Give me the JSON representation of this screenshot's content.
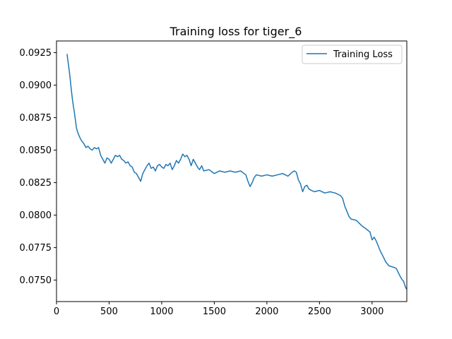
{
  "chart_data": {
    "type": "line",
    "title": "Training loss for tiger_6",
    "xlabel": "",
    "ylabel": "",
    "xlim": [
      0,
      3330
    ],
    "ylim": [
      0.07335,
      0.0934
    ],
    "grid": false,
    "legend_position": "top-right",
    "x_ticks": [
      0,
      500,
      1000,
      1500,
      2000,
      2500,
      3000
    ],
    "x_tick_labels": [
      "0",
      "500",
      "1000",
      "1500",
      "2000",
      "2500",
      "3000"
    ],
    "y_ticks": [
      0.075,
      0.0775,
      0.08,
      0.0825,
      0.085,
      0.0875,
      0.09,
      0.0925
    ],
    "y_tick_labels": [
      "0.0750",
      "0.0775",
      "0.0800",
      "0.0825",
      "0.0850",
      "0.0875",
      "0.0900",
      "0.0925"
    ],
    "series": [
      {
        "name": "Training Loss",
        "color": "#1f77b4",
        "x": [
          100,
          110,
          120,
          130,
          140,
          150,
          160,
          170,
          180,
          190,
          200,
          220,
          240,
          260,
          280,
          300,
          320,
          340,
          360,
          380,
          400,
          420,
          440,
          460,
          480,
          500,
          520,
          540,
          560,
          580,
          600,
          620,
          640,
          660,
          680,
          700,
          720,
          740,
          760,
          780,
          800,
          820,
          840,
          860,
          880,
          900,
          920,
          940,
          960,
          980,
          1000,
          1020,
          1040,
          1060,
          1080,
          1100,
          1120,
          1140,
          1160,
          1180,
          1200,
          1220,
          1240,
          1260,
          1280,
          1300,
          1320,
          1340,
          1360,
          1380,
          1400,
          1450,
          1500,
          1550,
          1600,
          1650,
          1700,
          1750,
          1800,
          1820,
          1840,
          1860,
          1880,
          1900,
          1950,
          2000,
          2050,
          2100,
          2150,
          2200,
          2240,
          2260,
          2280,
          2300,
          2320,
          2340,
          2360,
          2380,
          2400,
          2450,
          2500,
          2550,
          2600,
          2650,
          2700,
          2720,
          2740,
          2760,
          2780,
          2800,
          2850,
          2900,
          2950,
          2980,
          3000,
          3020,
          3040,
          3060,
          3080,
          3100,
          3130,
          3160,
          3200,
          3230,
          3260,
          3280,
          3300,
          3320,
          3330
        ],
        "y": [
          0.0924,
          0.0918,
          0.0912,
          0.0905,
          0.0897,
          0.089,
          0.0884,
          0.0879,
          0.0873,
          0.0867,
          0.0864,
          0.086,
          0.0857,
          0.0855,
          0.0852,
          0.0853,
          0.0851,
          0.085,
          0.0852,
          0.0851,
          0.0852,
          0.0846,
          0.0843,
          0.084,
          0.0844,
          0.0843,
          0.084,
          0.0843,
          0.0846,
          0.0845,
          0.0846,
          0.0843,
          0.0842,
          0.084,
          0.0841,
          0.0838,
          0.0837,
          0.0833,
          0.0832,
          0.0829,
          0.0826,
          0.0832,
          0.0835,
          0.0838,
          0.084,
          0.0836,
          0.0837,
          0.0834,
          0.0838,
          0.0839,
          0.0837,
          0.0836,
          0.0839,
          0.0838,
          0.084,
          0.0835,
          0.0838,
          0.0842,
          0.084,
          0.0843,
          0.0847,
          0.0845,
          0.0846,
          0.0843,
          0.0838,
          0.0843,
          0.084,
          0.0837,
          0.0835,
          0.0838,
          0.0834,
          0.0835,
          0.0832,
          0.0834,
          0.0833,
          0.0834,
          0.0833,
          0.0834,
          0.0831,
          0.0826,
          0.0822,
          0.0825,
          0.0829,
          0.0831,
          0.083,
          0.0831,
          0.083,
          0.0831,
          0.0832,
          0.083,
          0.0833,
          0.0834,
          0.0833,
          0.0827,
          0.0824,
          0.0818,
          0.0822,
          0.0823,
          0.082,
          0.0818,
          0.0819,
          0.0817,
          0.0818,
          0.0817,
          0.0815,
          0.0813,
          0.0807,
          0.0803,
          0.0799,
          0.0797,
          0.0796,
          0.0792,
          0.0789,
          0.0787,
          0.0781,
          0.0783,
          0.078,
          0.0776,
          0.0772,
          0.0769,
          0.0764,
          0.0761,
          0.076,
          0.0759,
          0.0754,
          0.0751,
          0.0749,
          0.0744,
          0.0743
        ]
      }
    ]
  }
}
